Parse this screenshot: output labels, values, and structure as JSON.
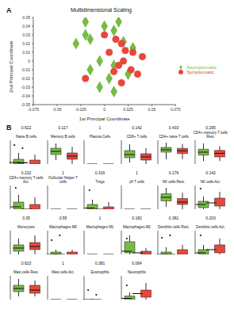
{
  "chart_data": [
    {
      "type": "scatter",
      "title": "Multidimensional Scaling",
      "annotations": [
        "A"
      ],
      "x_label": "1st Principal Coordinate",
      "y_label": "2nd Principal Coordinate",
      "xlim": [
        -0.075,
        0.075
      ],
      "xticks": [
        -0.075,
        -0.05,
        -0.025,
        0,
        0.025,
        0.05,
        0.075
      ],
      "ylim": [
        -0.05,
        0.05
      ],
      "yticks": [
        -0.05,
        -0.04,
        -0.03,
        -0.02,
        -0.01,
        0,
        0.01,
        0.02,
        0.03,
        0.04,
        0.05
      ],
      "legend": "right",
      "grid": false,
      "series": [
        {
          "name": "Asymptomatic",
          "color": "#77bb44",
          "marker": "diamond",
          "x": [
            -0.02,
            0.0,
            0.01,
            -0.02,
            -0.015,
            -0.03,
            0.02,
            0.03,
            -0.005,
            0.01,
            -0.015,
            0.025,
            0.005,
            -0.005,
            0.01,
            0.015
          ],
          "y": [
            0.045,
            0.04,
            0.035,
            0.03,
            0.025,
            0.02,
            0.022,
            0.015,
            0.0,
            -0.005,
            -0.01,
            -0.015,
            -0.02,
            -0.03,
            -0.035,
            0.045
          ]
        },
        {
          "name": "Symptomatic",
          "color": "#e8473d",
          "marker": "circle",
          "x": [
            0.0,
            0.012,
            0.018,
            0.03,
            0.04,
            0.02,
            0.015,
            0.028,
            0.035,
            -0.02,
            0.018,
            0.01,
            0.005,
            0.022
          ],
          "y": [
            0.03,
            0.025,
            0.02,
            0.01,
            0.005,
            0.0,
            -0.005,
            -0.01,
            -0.015,
            -0.02,
            -0.025,
            -0.012,
            0.01,
            0.012
          ]
        }
      ]
    },
    {
      "type": "box",
      "annotations": [
        "B"
      ],
      "title": "Naive B cells",
      "subtitle": "0.622",
      "categories": [
        "Asympt",
        "Sympt"
      ],
      "colors": [
        "#77bb44",
        "#e8473d"
      ],
      "ylim": [
        0,
        0.15
      ],
      "tick_labels": "x",
      "min": [
        0,
        0
      ],
      "q1": [
        0,
        0
      ],
      "median": [
        0.01,
        0.008
      ],
      "q3": [
        0.03,
        0.025
      ],
      "max": [
        0.07,
        0.06
      ],
      "outliers": [
        [
          0.12
        ],
        [
          0.1
        ]
      ]
    },
    {
      "type": "box",
      "title": "Memory B cells",
      "subtitle": "0.117",
      "categories": [
        "Asympt",
        "Sympt"
      ],
      "colors": [
        "#77bb44",
        "#e8473d"
      ],
      "ylim": [
        0,
        0.3
      ],
      "tick_labels": "x",
      "min": [
        0.05,
        0
      ],
      "q1": [
        0.12,
        0.06
      ],
      "median": [
        0.16,
        0.1
      ],
      "q3": [
        0.2,
        0.14
      ],
      "max": [
        0.26,
        0.22
      ],
      "outliers": [
        [],
        []
      ]
    },
    {
      "type": "box",
      "title": "Plasma Cells",
      "subtitle": "1",
      "categories": [
        "Asympt",
        "Sympt"
      ],
      "colors": [
        "#77bb44",
        "#e8473d"
      ],
      "ylim": [
        0,
        1
      ],
      "tick_labels": "x",
      "min": [
        0,
        0
      ],
      "q1": [
        0,
        0
      ],
      "median": [
        0,
        0
      ],
      "q3": [
        0,
        0
      ],
      "max": [
        0,
        0
      ],
      "outliers": [
        [],
        []
      ]
    },
    {
      "type": "box",
      "title": "CD8+ T cells",
      "subtitle": "0.142",
      "categories": [
        "Asympt",
        "Sympt"
      ],
      "colors": [
        "#77bb44",
        "#e8473d"
      ],
      "ylim": [
        0,
        0.3
      ],
      "tick_labels": "x",
      "min": [
        0.02,
        0
      ],
      "q1": [
        0.08,
        0.05
      ],
      "median": [
        0.12,
        0.09
      ],
      "q3": [
        0.17,
        0.13
      ],
      "max": [
        0.25,
        0.2
      ],
      "outliers": [
        [],
        []
      ]
    },
    {
      "type": "box",
      "title": "CD4+ naive T cells",
      "subtitle": "0.433",
      "categories": [
        "Asympt",
        "Sympt"
      ],
      "colors": [
        "#77bb44",
        "#e8473d"
      ],
      "ylim": [
        0,
        0.5
      ],
      "tick_labels": "x",
      "min": [
        0.1,
        0.1
      ],
      "q1": [
        0.25,
        0.22
      ],
      "median": [
        0.3,
        0.28
      ],
      "q3": [
        0.35,
        0.33
      ],
      "max": [
        0.45,
        0.42
      ],
      "outliers": [
        [],
        []
      ]
    },
    {
      "type": "box",
      "title": "CD4+ memory T cells Rest.",
      "subtitle": "0.295",
      "categories": [
        "Asympt",
        "Sympt"
      ],
      "colors": [
        "#77bb44",
        "#e8473d"
      ],
      "ylim": [
        0,
        0.4
      ],
      "tick_labels": "x",
      "min": [
        0.05,
        0.05
      ],
      "q1": [
        0.15,
        0.12
      ],
      "median": [
        0.2,
        0.18
      ],
      "q3": [
        0.25,
        0.23
      ],
      "max": [
        0.35,
        0.3
      ],
      "outliers": [
        [],
        []
      ]
    },
    {
      "type": "box",
      "title": "CD4+ memory T cells Act.",
      "subtitle": "0.232",
      "categories": [
        "Asympt",
        "Sympt"
      ],
      "colors": [
        "#77bb44",
        "#e8473d"
      ],
      "ylim": [
        0,
        0.1
      ],
      "tick_labels": "x",
      "min": [
        0,
        0
      ],
      "q1": [
        0,
        0
      ],
      "median": [
        0.01,
        0
      ],
      "q3": [
        0.03,
        0.02
      ],
      "max": [
        0.06,
        0.05
      ],
      "outliers": [
        [
          0.09
        ],
        []
      ]
    },
    {
      "type": "box",
      "title": "Follicular Helper T cells",
      "subtitle": "1",
      "categories": [
        "Asympt",
        "Sympt"
      ],
      "colors": [
        "#77bb44",
        "#e8473d"
      ],
      "ylim": [
        0,
        1
      ],
      "tick_labels": "x",
      "min": [
        0,
        0
      ],
      "q1": [
        0,
        0
      ],
      "median": [
        0,
        0
      ],
      "q3": [
        0,
        0
      ],
      "max": [
        0,
        0
      ],
      "outliers": [
        [],
        []
      ]
    },
    {
      "type": "box",
      "title": "Tregs",
      "subtitle": "0.316",
      "categories": [
        "Asympt",
        "Sympt"
      ],
      "colors": [
        "#77bb44",
        "#e8473d"
      ],
      "ylim": [
        0,
        0.1
      ],
      "tick_labels": "x",
      "min": [
        0,
        0
      ],
      "q1": [
        0,
        0
      ],
      "median": [
        0.005,
        0
      ],
      "q3": [
        0.02,
        0.01
      ],
      "max": [
        0.04,
        0.03
      ],
      "outliers": [
        [],
        [
          0.08
        ]
      ]
    },
    {
      "type": "box",
      "title": "γδ T cells",
      "subtitle": "1",
      "categories": [
        "Asympt",
        "Sympt"
      ],
      "colors": [
        "#77bb44",
        "#e8473d"
      ],
      "ylim": [
        0,
        1
      ],
      "tick_labels": "x",
      "min": [
        0,
        0
      ],
      "q1": [
        0,
        0
      ],
      "median": [
        0,
        0
      ],
      "q3": [
        0,
        0
      ],
      "max": [
        0,
        0
      ],
      "outliers": [
        [],
        []
      ]
    },
    {
      "type": "box",
      "title": "NK cells Rest.",
      "subtitle": "0.176",
      "categories": [
        "Asympt",
        "Sympt"
      ],
      "colors": [
        "#77bb44",
        "#e8473d"
      ],
      "ylim": [
        0,
        0.2
      ],
      "tick_labels": "x",
      "min": [
        0.02,
        0
      ],
      "q1": [
        0.07,
        0.04
      ],
      "median": [
        0.1,
        0.06
      ],
      "q3": [
        0.13,
        0.09
      ],
      "max": [
        0.18,
        0.14
      ],
      "outliers": [
        [],
        []
      ]
    },
    {
      "type": "box",
      "title": "NK cells Act.",
      "subtitle": "0.142",
      "categories": [
        "Asympt",
        "Sympt"
      ],
      "colors": [
        "#77bb44",
        "#e8473d"
      ],
      "ylim": [
        0,
        0.15
      ],
      "tick_labels": "x",
      "min": [
        0,
        0
      ],
      "q1": [
        0.01,
        0.02
      ],
      "median": [
        0.03,
        0.04
      ],
      "q3": [
        0.05,
        0.07
      ],
      "max": [
        0.08,
        0.11
      ],
      "outliers": [
        [
          0.13
        ],
        []
      ]
    },
    {
      "type": "box",
      "title": "Monocytes",
      "subtitle": "0.35",
      "categories": [
        "Asympt",
        "Sympt"
      ],
      "colors": [
        "#77bb44",
        "#e8473d"
      ],
      "ylim": [
        0,
        0.3
      ],
      "tick_labels": "x",
      "min": [
        0,
        0
      ],
      "q1": [
        0.04,
        0.06
      ],
      "median": [
        0.08,
        0.1
      ],
      "q3": [
        0.12,
        0.15
      ],
      "max": [
        0.2,
        0.24
      ],
      "outliers": [
        [],
        []
      ]
    },
    {
      "type": "box",
      "title": "Macrophages M0",
      "subtitle": "0.55",
      "categories": [
        "Asympt",
        "Sympt"
      ],
      "colors": [
        "#77bb44",
        "#e8473d"
      ],
      "ylim": [
        0,
        0.1
      ],
      "tick_labels": "x",
      "min": [
        0,
        0
      ],
      "q1": [
        0,
        0
      ],
      "median": [
        0,
        0
      ],
      "q3": [
        0.01,
        0.01
      ],
      "max": [
        0.02,
        0.02
      ],
      "outliers": [
        [
          0.06
        ],
        [
          0.08
        ]
      ]
    },
    {
      "type": "box",
      "title": "Macrophages M1",
      "subtitle": "1",
      "categories": [
        "Asympt",
        "Sympt"
      ],
      "colors": [
        "#77bb44",
        "#e8473d"
      ],
      "ylim": [
        0,
        1
      ],
      "tick_labels": "x",
      "min": [
        0,
        0
      ],
      "q1": [
        0,
        0
      ],
      "median": [
        0,
        0
      ],
      "q3": [
        0,
        0
      ],
      "max": [
        0,
        0
      ],
      "outliers": [
        [],
        []
      ]
    },
    {
      "type": "box",
      "title": "Macrophages M2",
      "subtitle": "0.182",
      "categories": [
        "Asympt",
        "Sympt"
      ],
      "colors": [
        "#77bb44",
        "#e8473d"
      ],
      "ylim": [
        0,
        0.15
      ],
      "tick_labels": "x",
      "min": [
        0,
        0
      ],
      "q1": [
        0.01,
        0
      ],
      "median": [
        0.02,
        0.01
      ],
      "q3": [
        0.08,
        0.02
      ],
      "max": [
        0.12,
        0.04
      ],
      "outliers": [
        [],
        [
          0.1
        ]
      ]
    },
    {
      "type": "box",
      "title": "Dendritic cells Rest.",
      "subtitle": "0.381",
      "categories": [
        "Asympt",
        "Sympt"
      ],
      "colors": [
        "#77bb44",
        "#e8473d"
      ],
      "ylim": [
        0,
        0.1
      ],
      "tick_labels": "x",
      "min": [
        0,
        0
      ],
      "q1": [
        0,
        0
      ],
      "median": [
        0,
        0
      ],
      "q3": [
        0.01,
        0.02
      ],
      "max": [
        0.03,
        0.04
      ],
      "outliers": [
        [
          0.07
        ],
        [
          0.08
        ]
      ]
    },
    {
      "type": "box",
      "title": "Dendritic cells Act.",
      "subtitle": "0.203",
      "categories": [
        "Asympt",
        "Sympt"
      ],
      "colors": [
        "#77bb44",
        "#e8473d"
      ],
      "ylim": [
        0,
        0.15
      ],
      "tick_labels": "x",
      "min": [
        0,
        0
      ],
      "q1": [
        0,
        0.01
      ],
      "median": [
        0.01,
        0.03
      ],
      "q3": [
        0.03,
        0.06
      ],
      "max": [
        0.06,
        0.1
      ],
      "outliers": [
        [
          0.12
        ],
        []
      ]
    },
    {
      "type": "box",
      "title": "Mast cells Rest.",
      "subtitle": "0.623",
      "categories": [
        "Asympt",
        "Sympt"
      ],
      "colors": [
        "#77bb44",
        "#e8473d"
      ],
      "ylim": [
        0,
        0.15
      ],
      "tick_labels": "x",
      "min": [
        0.02,
        0.02
      ],
      "q1": [
        0.05,
        0.04
      ],
      "median": [
        0.07,
        0.06
      ],
      "q3": [
        0.09,
        0.09
      ],
      "max": [
        0.13,
        0.12
      ],
      "outliers": [
        [],
        []
      ]
    },
    {
      "type": "box",
      "title": "Mast cells Act.",
      "subtitle": "1",
      "categories": [
        "Asympt",
        "Sympt"
      ],
      "colors": [
        "#77bb44",
        "#e8473d"
      ],
      "ylim": [
        0,
        1
      ],
      "tick_labels": "x",
      "min": [
        0,
        0
      ],
      "q1": [
        0,
        0
      ],
      "median": [
        0,
        0
      ],
      "q3": [
        0,
        0
      ],
      "max": [
        0,
        0
      ],
      "outliers": [
        [],
        []
      ]
    },
    {
      "type": "box",
      "title": "Eosinophils",
      "subtitle": "0.381",
      "categories": [
        "Asympt",
        "Sympt"
      ],
      "colors": [
        "#77bb44",
        "#e8473d"
      ],
      "ylim": [
        0,
        0.05
      ],
      "tick_labels": "x",
      "min": [
        0,
        0
      ],
      "q1": [
        0,
        0
      ],
      "median": [
        0,
        0
      ],
      "q3": [
        0,
        0
      ],
      "max": [
        0,
        0
      ],
      "outliers": [
        [
          0.02
        ],
        [
          0.01
        ]
      ]
    },
    {
      "type": "box",
      "title": "Neutrophils",
      "subtitle": "0.064",
      "categories": [
        "Asympt",
        "Sympt"
      ],
      "colors": [
        "#77bb44",
        "#e8473d"
      ],
      "ylim": [
        0,
        0.1
      ],
      "tick_labels": "x",
      "min": [
        0,
        0
      ],
      "q1": [
        0,
        0.01
      ],
      "median": [
        0.005,
        0.025
      ],
      "q3": [
        0.015,
        0.04
      ],
      "max": [
        0.03,
        0.07
      ],
      "outliers": [
        [
          0.06
        ],
        []
      ]
    }
  ]
}
